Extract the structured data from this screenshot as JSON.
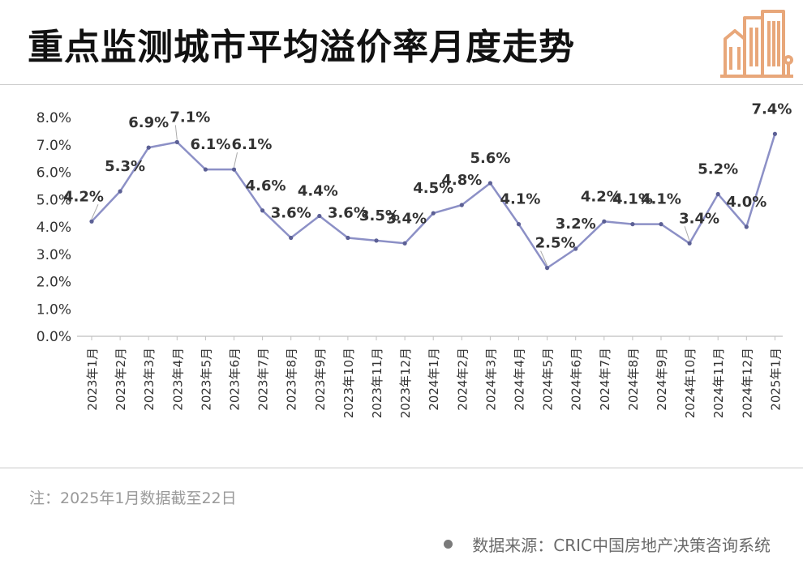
{
  "header": {
    "title": "重点监测城市平均溢价率月度走势"
  },
  "footer": {
    "note": "注：2025年1月数据截至22日",
    "source": "数据来源：CRIC中国房地产决策咨询系统"
  },
  "colors": {
    "line": "#8c90c6",
    "marker": "#5c6095",
    "logo": "#e8a77a",
    "text": "#333333"
  },
  "icons": {
    "logo": "city-buildings-icon"
  },
  "chart_data": {
    "type": "line",
    "categories": [
      "2023年1月",
      "2023年2月",
      "2023年3月",
      "2023年4月",
      "2023年5月",
      "2023年6月",
      "2023年7月",
      "2023年8月",
      "2023年9月",
      "2023年10月",
      "2023年11月",
      "2023年12月",
      "2024年1月",
      "2024年2月",
      "2024年3月",
      "2024年4月",
      "2024年5月",
      "2024年6月",
      "2024年7月",
      "2024年8月",
      "2024年9月",
      "2024年10月",
      "2024年11月",
      "2024年12月",
      "2025年1月"
    ],
    "values": [
      4.2,
      5.3,
      6.9,
      7.1,
      6.1,
      6.1,
      4.6,
      3.6,
      4.4,
      3.6,
      3.5,
      3.4,
      4.5,
      4.8,
      5.6,
      4.1,
      2.5,
      3.2,
      4.2,
      4.1,
      4.1,
      3.4,
      5.2,
      4.0,
      7.4
    ],
    "data_labels": [
      "4.2%",
      "5.3%",
      "6.9%",
      "7.1%",
      "6.1%",
      "6.1%",
      "4.6%",
      "3.6%",
      "4.4%",
      "3.6%",
      "3.5%",
      "3.4%",
      "4.5%",
      "4.8%",
      "5.6%",
      "4.1%",
      "2.5%",
      "3.2%",
      "4.2%",
      "4.1%",
      "4.1%",
      "3.4%",
      "5.2%",
      "4.0%",
      "7.4%"
    ],
    "y_ticks": [
      "0.0%",
      "1.0%",
      "2.0%",
      "3.0%",
      "4.0%",
      "5.0%",
      "6.0%",
      "7.0%",
      "8.0%"
    ],
    "ylim": [
      0,
      8
    ],
    "grid": false,
    "legend": "none",
    "title": "",
    "xlabel": "",
    "ylabel": ""
  }
}
